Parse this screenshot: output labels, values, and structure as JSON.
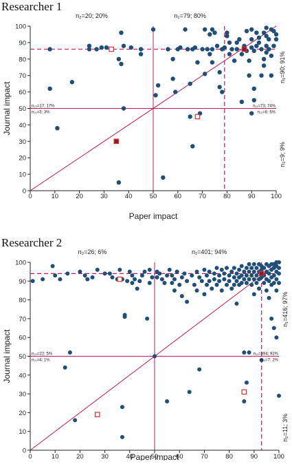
{
  "chart_data": [
    {
      "type": "scatter",
      "title": "Researcher 1",
      "xlabel": "Paper impact",
      "ylabel": "Journal impact",
      "xlim": [
        0,
        100
      ],
      "ylim": [
        0,
        100
      ],
      "xticks": [
        0,
        10,
        20,
        30,
        40,
        50,
        60,
        70,
        80,
        90,
        100
      ],
      "yticks": [
        0,
        10,
        20,
        30,
        40,
        50,
        60,
        70,
        80,
        90,
        100
      ],
      "median_lines": {
        "x": 50,
        "y": 50
      },
      "threshold_lines": {
        "x": 79,
        "y": 86
      },
      "diagonal": true,
      "labels": {
        "top_left": "n₂=20; 20%",
        "top_right": "n₁=79; 80%",
        "right_top": "n₁=90; 91%",
        "right_bottom": "n₂=9; 9%",
        "ul_upper": "n₂₂=17; 17%",
        "ul_lower": "n₂₁=3; 3%",
        "ur_upper": "n₁₁=73; 74%",
        "ur_lower": "n₁₂=6; 6%"
      },
      "points": [
        [
          8,
          86
        ],
        [
          8,
          62
        ],
        [
          11,
          38
        ],
        [
          17,
          66
        ],
        [
          24,
          86
        ],
        [
          24,
          88
        ],
        [
          27,
          86
        ],
        [
          29,
          87
        ],
        [
          31,
          87
        ],
        [
          33,
          86
        ],
        [
          36,
          80
        ],
        [
          37,
          96
        ],
        [
          37,
          77
        ],
        [
          38,
          88
        ],
        [
          38,
          50
        ],
        [
          36,
          5
        ],
        [
          41,
          87
        ],
        [
          45,
          86
        ],
        [
          45,
          83
        ],
        [
          50,
          98
        ],
        [
          51,
          58
        ],
        [
          52,
          64
        ],
        [
          54,
          8
        ],
        [
          56,
          86
        ],
        [
          58,
          80
        ],
        [
          58,
          68
        ],
        [
          59,
          60
        ],
        [
          60,
          86
        ],
        [
          61,
          87
        ],
        [
          63,
          98
        ],
        [
          64,
          86
        ],
        [
          65,
          65
        ],
        [
          65,
          45
        ],
        [
          66,
          86
        ],
        [
          66,
          27
        ],
        [
          67,
          87
        ],
        [
          68,
          78
        ],
        [
          69,
          47
        ],
        [
          70,
          86
        ],
        [
          71,
          98
        ],
        [
          71,
          71
        ],
        [
          72,
          86
        ],
        [
          73,
          95
        ],
        [
          73,
          83
        ],
        [
          74,
          78
        ],
        [
          74,
          86
        ],
        [
          74,
          98
        ],
        [
          75,
          96
        ],
        [
          76,
          88
        ],
        [
          77,
          72
        ],
        [
          77,
          63
        ],
        [
          78,
          86
        ],
        [
          78,
          60
        ],
        [
          79,
          87
        ],
        [
          80,
          96
        ],
        [
          80,
          94
        ],
        [
          81,
          90
        ],
        [
          81,
          83
        ],
        [
          82,
          86
        ],
        [
          83,
          79
        ],
        [
          84,
          90
        ],
        [
          84,
          86
        ],
        [
          85,
          92
        ],
        [
          86,
          83
        ],
        [
          86,
          54
        ],
        [
          87,
          88
        ],
        [
          87,
          86
        ],
        [
          88,
          97
        ],
        [
          88,
          85
        ],
        [
          89,
          79
        ],
        [
          89,
          70
        ],
        [
          90,
          98
        ],
        [
          90,
          92
        ],
        [
          90,
          87
        ],
        [
          90,
          47
        ],
        [
          91,
          85
        ],
        [
          91,
          62
        ],
        [
          91,
          55
        ],
        [
          92,
          96
        ],
        [
          92,
          88
        ],
        [
          93,
          90
        ],
        [
          93,
          93
        ],
        [
          94,
          86
        ],
        [
          94,
          70
        ],
        [
          95,
          96
        ],
        [
          95,
          80
        ],
        [
          95,
          76
        ],
        [
          96,
          99
        ],
        [
          96,
          94
        ],
        [
          96,
          88
        ],
        [
          96,
          84
        ],
        [
          97,
          92
        ],
        [
          97,
          86
        ],
        [
          98,
          98
        ],
        [
          98,
          82
        ],
        [
          98,
          70
        ],
        [
          99,
          97
        ],
        [
          99,
          88
        ],
        [
          100,
          92
        ],
        [
          100,
          95
        ]
      ],
      "highlighted": [
        [
          33,
          86
        ],
        [
          35,
          30
        ],
        [
          68,
          45
        ],
        [
          87,
          86
        ]
      ]
    },
    {
      "type": "scatter",
      "title": "Researcher 2",
      "xlabel": "Paper impact",
      "ylabel": "Journal impact",
      "xlim": [
        0,
        100
      ],
      "ylim": [
        0,
        100
      ],
      "xticks": [
        0,
        10,
        20,
        30,
        40,
        50,
        60,
        70,
        80,
        90,
        100
      ],
      "yticks": [
        0,
        10,
        20,
        30,
        40,
        50,
        60,
        70,
        80,
        90,
        100
      ],
      "median_lines": {
        "x": 50,
        "y": 50
      },
      "threshold_lines": {
        "x": 93,
        "y": 94
      },
      "diagonal": true,
      "labels": {
        "top_left": "n₂=26; 6%",
        "top_right": "n₁=401; 94%",
        "right_top": "n₁=416; 97%",
        "right_bottom": "n₂=11; 3%",
        "ul_upper": "n₂₂=22; 5%",
        "ul_lower": "n₂₁=4; 1%",
        "ur_upper": "n₁₁=394; 92%",
        "ur_lower": "n₁₂=7; 2%"
      },
      "points": [
        [
          1,
          90
        ],
        [
          5,
          91
        ],
        [
          9,
          98
        ],
        [
          10,
          93
        ],
        [
          12,
          91
        ],
        [
          14,
          44
        ],
        [
          15,
          94
        ],
        [
          16,
          52
        ],
        [
          18,
          16
        ],
        [
          20,
          95
        ],
        [
          22,
          93
        ],
        [
          23,
          91
        ],
        [
          25,
          92
        ],
        [
          27,
          96
        ],
        [
          30,
          94
        ],
        [
          32,
          94
        ],
        [
          33,
          92
        ],
        [
          35,
          91
        ],
        [
          36,
          96
        ],
        [
          37,
          91
        ],
        [
          37,
          23
        ],
        [
          37,
          7
        ],
        [
          38,
          71
        ],
        [
          38,
          72
        ],
        [
          39,
          90
        ],
        [
          40,
          95
        ],
        [
          41,
          93
        ],
        [
          41,
          89
        ],
        [
          42,
          91
        ],
        [
          43,
          86
        ],
        [
          44,
          90
        ],
        [
          45,
          93
        ],
        [
          46,
          95
        ],
        [
          47,
          70
        ],
        [
          48,
          96
        ],
        [
          48,
          89
        ],
        [
          49,
          92
        ],
        [
          50,
          50
        ],
        [
          51,
          92
        ],
        [
          51,
          95
        ],
        [
          52,
          94
        ],
        [
          53,
          91
        ],
        [
          54,
          89
        ],
        [
          55,
          93
        ],
        [
          55,
          26
        ],
        [
          56,
          96
        ],
        [
          57,
          93
        ],
        [
          57,
          89
        ],
        [
          58,
          91
        ],
        [
          58,
          85
        ],
        [
          59,
          95
        ],
        [
          60,
          88
        ],
        [
          61,
          92
        ],
        [
          61,
          82
        ],
        [
          62,
          94
        ],
        [
          63,
          90
        ],
        [
          63,
          79
        ],
        [
          64,
          31
        ],
        [
          65,
          93
        ],
        [
          66,
          88
        ],
        [
          67,
          95
        ],
        [
          67,
          85
        ],
        [
          68,
          92
        ],
        [
          68,
          43
        ],
        [
          69,
          90
        ],
        [
          70,
          96
        ],
        [
          70,
          83
        ],
        [
          71,
          93
        ],
        [
          71,
          88
        ],
        [
          72,
          95
        ],
        [
          72,
          90
        ],
        [
          73,
          86
        ],
        [
          74,
          94
        ],
        [
          74,
          91
        ],
        [
          75,
          97
        ],
        [
          75,
          88
        ],
        [
          76,
          93
        ],
        [
          76,
          90
        ],
        [
          77,
          96
        ],
        [
          77,
          85
        ],
        [
          78,
          94
        ],
        [
          78,
          91
        ],
        [
          79,
          88
        ],
        [
          79,
          97
        ],
        [
          80,
          93
        ],
        [
          80,
          90
        ],
        [
          81,
          95
        ],
        [
          81,
          86
        ],
        [
          82,
          92
        ],
        [
          82,
          88
        ],
        [
          82,
          97
        ],
        [
          83,
          94
        ],
        [
          83,
          90
        ],
        [
          83,
          78
        ],
        [
          84,
          96
        ],
        [
          84,
          92
        ],
        [
          84,
          88
        ],
        [
          85,
          93
        ],
        [
          85,
          89
        ],
        [
          85,
          98
        ],
        [
          86,
          95
        ],
        [
          86,
          91
        ],
        [
          86,
          52
        ],
        [
          86,
          26
        ],
        [
          87,
          97
        ],
        [
          87,
          93
        ],
        [
          87,
          89
        ],
        [
          87,
          36
        ],
        [
          88,
          95
        ],
        [
          88,
          91
        ],
        [
          88,
          99
        ],
        [
          88,
          52
        ],
        [
          89,
          97
        ],
        [
          89,
          93
        ],
        [
          89,
          88
        ],
        [
          90,
          99
        ],
        [
          90,
          95
        ],
        [
          90,
          91
        ],
        [
          90,
          83
        ],
        [
          91,
          97
        ],
        [
          91,
          93
        ],
        [
          91,
          89
        ],
        [
          92,
          99
        ],
        [
          92,
          95
        ],
        [
          92,
          91
        ],
        [
          92,
          86
        ],
        [
          93,
          98
        ],
        [
          93,
          96
        ],
        [
          93,
          92
        ],
        [
          93,
          48
        ],
        [
          94,
          97
        ],
        [
          94,
          93
        ],
        [
          94,
          89
        ],
        [
          95,
          99
        ],
        [
          95,
          95
        ],
        [
          95,
          91
        ],
        [
          95,
          85
        ],
        [
          96,
          98
        ],
        [
          96,
          94
        ],
        [
          96,
          90
        ],
        [
          96,
          81
        ],
        [
          97,
          99
        ],
        [
          97,
          96
        ],
        [
          97,
          92
        ],
        [
          97,
          88
        ],
        [
          97,
          70
        ],
        [
          98,
          99
        ],
        [
          98,
          97
        ],
        [
          98,
          93
        ],
        [
          98,
          89
        ],
        [
          98,
          65
        ],
        [
          99,
          100
        ],
        [
          99,
          98
        ],
        [
          99,
          95
        ],
        [
          99,
          91
        ],
        [
          99,
          85
        ],
        [
          99,
          60
        ],
        [
          100,
          100
        ],
        [
          100,
          97
        ],
        [
          100,
          94
        ],
        [
          100,
          89
        ],
        [
          100,
          29
        ]
      ],
      "highlighted": [
        [
          36,
          91
        ],
        [
          27,
          19
        ],
        [
          86,
          31
        ],
        [
          93,
          94
        ]
      ]
    }
  ]
}
